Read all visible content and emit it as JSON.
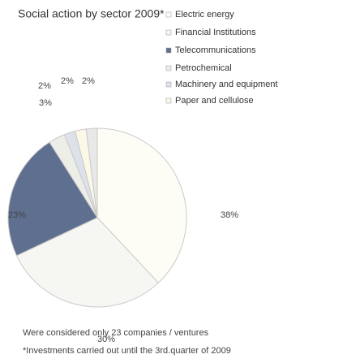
{
  "chart_data": {
    "type": "pie",
    "title": "Social action by sector 2009*",
    "categories": [
      "Electric energy",
      "Financial Institutions",
      "Telecommunications",
      "Petrochemical",
      "Machinery and equipment",
      "Paper and cellulose",
      null
    ],
    "values": [
      38,
      30,
      23,
      3,
      2,
      2,
      2
    ],
    "value_labels": [
      "38%",
      "30%",
      "23%",
      "3%",
      "2%",
      "2%",
      "2%"
    ],
    "colors": [
      "#fdfdf6",
      "#f6f6f2",
      "#5f6f90",
      "#eeeee8",
      "#dde2ea",
      "#fbf8e6",
      "#e8e8e8"
    ],
    "notes": [
      "Were considered only 23 companies / ventures",
      "*Investments carried out until the 3rd.quarter of 2009"
    ]
  }
}
